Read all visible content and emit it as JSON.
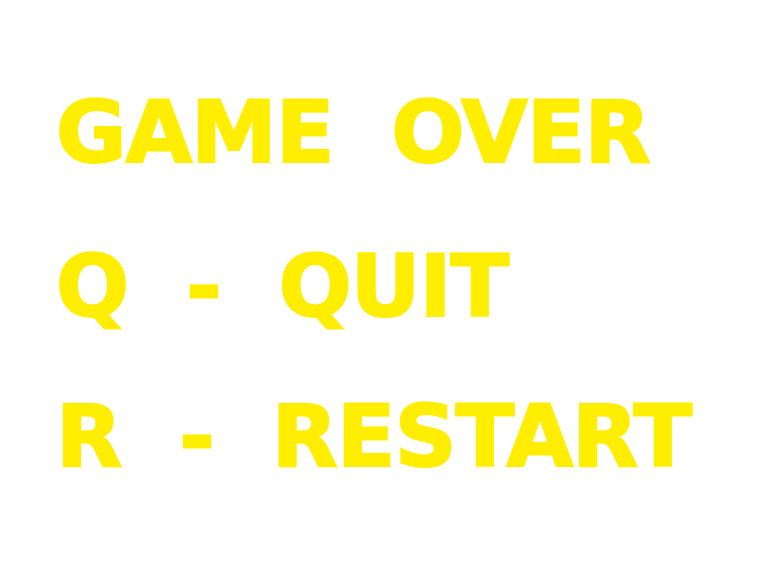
{
  "screen": {
    "title": "GAME  OVER",
    "quit_option": "Q  -  QUIT",
    "restart_option": "R  -  RESTART",
    "text_color": "#ffee00",
    "background_color": "#ffffff"
  }
}
